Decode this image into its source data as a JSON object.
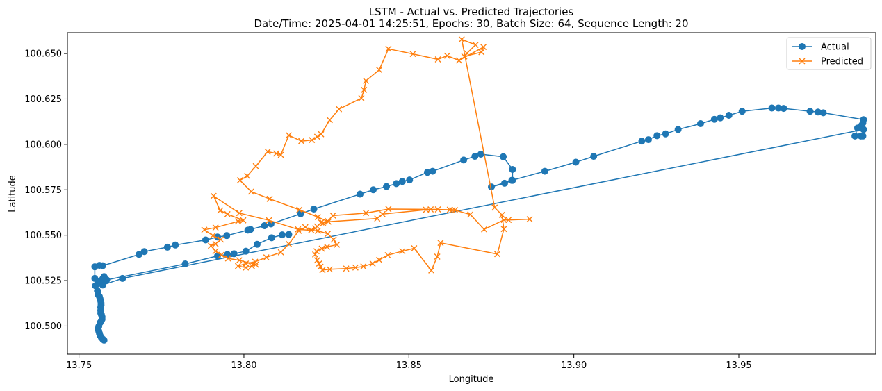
{
  "chart_data": {
    "type": "line",
    "title": "LSTM - Actual vs. Predicted Trajectories",
    "subtitle": "Date/Time: 2025-04-01 14:25:51, Epochs: 30, Batch Size: 64, Sequence Length: 20",
    "xlabel": "Longitude",
    "ylabel": "Latitude",
    "xlim": [
      13.7465,
      13.9915
    ],
    "ylim": [
      100.4845,
      100.6615
    ],
    "xticks": [
      13.75,
      13.8,
      13.85,
      13.9,
      13.95
    ],
    "xtick_labels": [
      "13.75",
      "13.80",
      "13.85",
      "13.90",
      "13.95"
    ],
    "yticks": [
      100.5,
      100.525,
      100.55,
      100.575,
      100.6,
      100.625,
      100.65
    ],
    "ytick_labels": [
      "100.500",
      "100.525",
      "100.550",
      "100.575",
      "100.600",
      "100.625",
      "100.650"
    ],
    "grid": false,
    "legend_position": "upper-right",
    "series": [
      {
        "name": "Actual",
        "color": "#1f77b4",
        "marker": "circle",
        "x": [
          13.7576,
          13.7572,
          13.7568,
          13.7564,
          13.7562,
          13.756,
          13.7558,
          13.756,
          13.7564,
          13.7568,
          13.757,
          13.757,
          13.7568,
          13.7566,
          13.7566,
          13.7566,
          13.7567,
          13.7567,
          13.7566,
          13.7564,
          13.7562,
          13.7558,
          13.7556,
          13.755,
          13.7548,
          13.7548,
          13.7562,
          13.7572,
          13.7682,
          13.7698,
          13.7768,
          13.7792,
          13.7884,
          13.792,
          13.7948,
          13.8012,
          13.802,
          13.8062,
          13.8082,
          13.8172,
          13.8212,
          13.8352,
          13.8392,
          13.8432,
          13.8462,
          13.848,
          13.8502,
          13.8556,
          13.8572,
          13.8666,
          13.87,
          13.8718,
          13.8786,
          13.8814,
          13.8814,
          13.879,
          13.875,
          13.8812,
          13.8912,
          13.9006,
          13.906,
          13.9206,
          13.9226,
          13.9252,
          13.9278,
          13.9316,
          13.9384,
          13.9426,
          13.9444,
          13.947,
          13.951,
          13.96,
          13.962,
          13.9636,
          13.9716,
          13.974,
          13.9756,
          13.9878,
          13.9876,
          13.9872,
          13.986,
          13.9852,
          13.987,
          13.9876,
          13.9878,
          13.7632,
          13.7572,
          13.756,
          13.7564,
          13.7572,
          13.7576,
          13.7576,
          13.7578,
          13.7584,
          13.7822,
          13.792,
          13.795,
          13.797,
          13.8006,
          13.804,
          13.8084,
          13.8116,
          13.8136
        ],
        "y": [
          100.4922,
          100.4928,
          100.4936,
          100.4948,
          100.496,
          100.4972,
          100.4984,
          100.4998,
          100.5018,
          100.503,
          100.5038,
          100.505,
          100.5062,
          100.5072,
          100.5086,
          100.5102,
          100.5116,
          100.5126,
          100.5138,
          100.515,
          100.5162,
          100.5174,
          100.5194,
          100.5222,
          100.5262,
          100.5326,
          100.5334,
          100.5332,
          100.5394,
          100.541,
          100.5434,
          100.5446,
          100.5474,
          100.549,
          100.5498,
          100.5528,
          100.5532,
          100.5552,
          100.5562,
          100.5618,
          100.5644,
          100.5726,
          100.575,
          100.5768,
          100.5784,
          100.5796,
          100.5804,
          100.5846,
          100.5852,
          100.5914,
          100.5934,
          100.5946,
          100.5932,
          100.5862,
          100.5802,
          100.5786,
          100.5766,
          100.5802,
          100.5852,
          100.5902,
          100.5934,
          100.6018,
          100.6026,
          100.6048,
          100.6058,
          100.6082,
          100.6114,
          100.6138,
          100.6146,
          100.616,
          100.6182,
          100.62,
          100.62,
          100.6198,
          100.6182,
          100.6178,
          100.6174,
          100.6136,
          100.6118,
          100.6104,
          100.609,
          100.6046,
          100.6046,
          100.6046,
          100.6082,
          100.5262,
          100.5226,
          100.5236,
          100.5248,
          100.526,
          100.5272,
          100.527,
          100.5262,
          100.5254,
          100.5342,
          100.5386,
          100.5394,
          100.5398,
          100.5412,
          100.545,
          100.5486,
          100.5502,
          100.5504
        ]
      },
      {
        "name": "Predicted",
        "color": "#ff7f0e",
        "marker": "x",
        "x": [
          13.8866,
          13.8802,
          13.8788,
          13.8728,
          13.8686,
          13.864,
          13.8588,
          13.8438,
          13.837,
          13.827,
          13.8254,
          13.824,
          13.8234,
          13.8222,
          13.8216,
          13.8204,
          13.8186,
          13.8166,
          13.8136,
          13.8112,
          13.8068,
          13.8034,
          13.8006,
          13.7982,
          13.8006,
          13.8024,
          13.8036,
          13.7986,
          13.7952,
          13.7932,
          13.7914,
          13.79,
          13.7914,
          13.793,
          13.7906,
          13.788,
          13.7914,
          13.7982,
          13.7998,
          13.795,
          13.7928,
          13.7908,
          13.7986,
          13.8076,
          13.8164,
          13.8224,
          13.8254,
          13.8272,
          13.8282,
          13.8252,
          13.8236,
          13.822,
          13.8216,
          13.8222,
          13.8228,
          13.8232,
          13.8238,
          13.826,
          13.831,
          13.8338,
          13.8362,
          13.839,
          13.841,
          13.8436,
          13.848,
          13.8516,
          13.8568,
          13.8586,
          13.8596,
          13.8768,
          13.8788,
          13.8782,
          13.876,
          13.866,
          13.8702,
          13.8676,
          13.8668,
          13.872,
          13.8726,
          13.8652,
          13.8616,
          13.8588,
          13.8512,
          13.8438,
          13.841,
          13.837,
          13.8364,
          13.8356,
          13.8288,
          13.826,
          13.8234,
          13.8222,
          13.8206,
          13.8174,
          13.8136,
          13.8112,
          13.8098,
          13.8072,
          13.8036,
          13.801,
          13.7988,
          13.8022,
          13.8078,
          13.8168,
          13.8224,
          13.8256,
          13.8404,
          13.842,
          13.8552,
          13.8566,
          13.8624,
          13.8632
        ],
        "y": [
          100.5588,
          100.5584,
          100.5584,
          100.5532,
          100.5614,
          100.5638,
          100.5642,
          100.5644,
          100.5622,
          100.5608,
          100.5578,
          100.5566,
          100.557,
          100.5548,
          100.5538,
          100.5528,
          100.5544,
          100.5524,
          100.5452,
          100.5406,
          100.5378,
          100.5354,
          100.5344,
          100.533,
          100.5322,
          100.533,
          100.5338,
          100.5362,
          100.5372,
          100.5392,
          100.5412,
          100.5442,
          100.5452,
          100.5476,
          100.5498,
          100.553,
          100.5542,
          100.5576,
          100.5582,
          100.5616,
          100.5636,
          100.5716,
          100.5622,
          100.5582,
          100.5532,
          100.5524,
          100.5508,
          100.5476,
          100.5448,
          100.5436,
          100.5426,
          100.5412,
          100.5394,
          100.5362,
          100.5344,
          100.5326,
          100.5308,
          100.5312,
          100.5316,
          100.5322,
          100.5328,
          100.5344,
          100.5364,
          100.539,
          100.5412,
          100.5428,
          100.5306,
          100.5382,
          100.5458,
          100.5396,
          100.5534,
          100.5612,
          100.5652,
          100.6578,
          100.6548,
          100.6502,
          100.6484,
          100.6508,
          100.6536,
          100.6462,
          100.6488,
          100.6468,
          100.6498,
          100.6526,
          100.641,
          100.635,
          100.63,
          100.6254,
          100.6194,
          100.6134,
          100.6056,
          100.6042,
          100.6024,
          100.6018,
          100.605,
          100.5942,
          100.595,
          100.596,
          100.588,
          100.5826,
          100.5802,
          100.574,
          100.57,
          100.564,
          100.56,
          100.5574,
          100.5592,
          100.5616,
          100.564,
          100.5642,
          100.564,
          100.5638
        ]
      }
    ]
  }
}
